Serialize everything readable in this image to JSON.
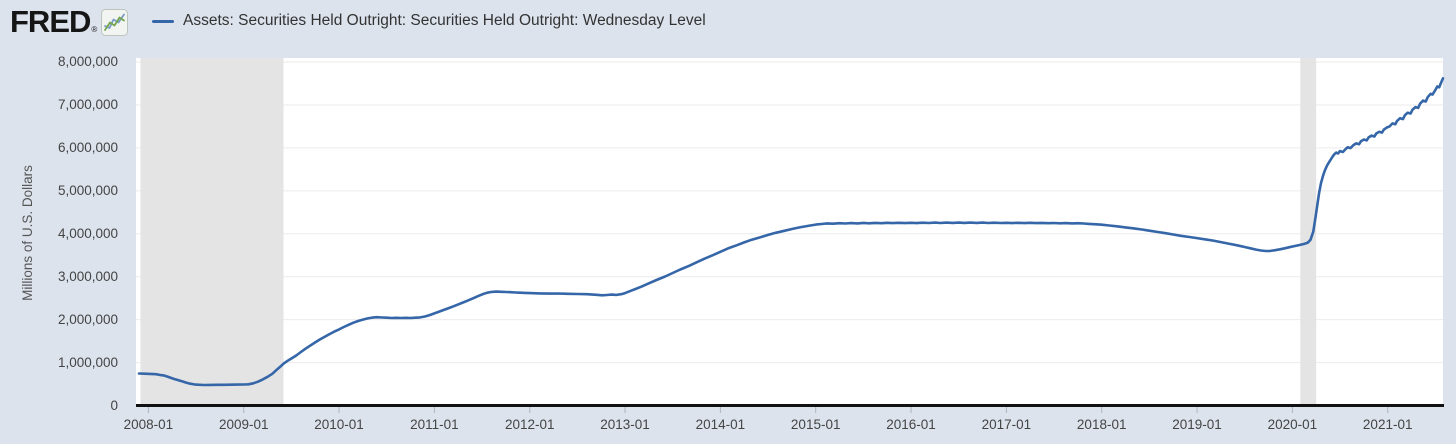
{
  "header": {
    "logo_text": "FRED",
    "registered_mark": "®",
    "legend": {
      "series_label": "Assets: Securities Held Outright: Securities Held Outright: Wednesday Level"
    }
  },
  "chart_data": {
    "type": "line",
    "title": "Assets: Securities Held Outright: Securities Held Outright: Wednesday Level",
    "xlabel": "",
    "ylabel": "Millions of U.S. Dollars",
    "x_domain": [
      2007.87,
      2021.58
    ],
    "ylim": [
      0,
      8000000
    ],
    "y_tick_step": 1000000,
    "grid": "horizontal",
    "legend_position": "top",
    "y_ticks": [
      "0",
      "1,000,000",
      "2,000,000",
      "3,000,000",
      "4,000,000",
      "5,000,000",
      "6,000,000",
      "7,000,000",
      "8,000,000"
    ],
    "x_ticks": [
      {
        "label": "2008-01",
        "x": 2008
      },
      {
        "label": "2009-01",
        "x": 2009
      },
      {
        "label": "2010-01",
        "x": 2010
      },
      {
        "label": "2011-01",
        "x": 2011
      },
      {
        "label": "2012-01",
        "x": 2012
      },
      {
        "label": "2013-01",
        "x": 2013
      },
      {
        "label": "2014-01",
        "x": 2014
      },
      {
        "label": "2015-01",
        "x": 2015
      },
      {
        "label": "2016-01",
        "x": 2016
      },
      {
        "label": "2017-01",
        "x": 2017
      },
      {
        "label": "2018-01",
        "x": 2018
      },
      {
        "label": "2019-01",
        "x": 2019
      },
      {
        "label": "2020-01",
        "x": 2020
      },
      {
        "label": "2021-01",
        "x": 2021
      }
    ],
    "recession_bands": [
      [
        2007.917,
        2009.417
      ],
      [
        2020.083,
        2020.25
      ]
    ],
    "colors": {
      "line": "#3566a8",
      "plot_bg": "#ffffff",
      "page_bg": "#dce3ed",
      "band": "#e4e4e4",
      "grid": "#ebebeb",
      "axis": "#111111",
      "tick": "#aab4c4"
    },
    "series": [
      {
        "name": "Assets: Securities Held Outright: Securities Held Outright: Wednesday Level",
        "points": [
          [
            2007.9,
            745000
          ],
          [
            2007.96,
            741000
          ],
          [
            2008.02,
            736000
          ],
          [
            2008.08,
            728000
          ],
          [
            2008.12,
            713000
          ],
          [
            2008.16,
            700000
          ],
          [
            2008.2,
            672000
          ],
          [
            2008.24,
            640000
          ],
          [
            2008.28,
            610000
          ],
          [
            2008.32,
            585000
          ],
          [
            2008.36,
            558000
          ],
          [
            2008.4,
            532000
          ],
          [
            2008.44,
            508000
          ],
          [
            2008.48,
            492000
          ],
          [
            2008.52,
            484000
          ],
          [
            2008.58,
            478000
          ],
          [
            2008.65,
            480000
          ],
          [
            2008.72,
            483000
          ],
          [
            2008.79,
            481000
          ],
          [
            2008.86,
            485000
          ],
          [
            2008.93,
            487000
          ],
          [
            2009.0,
            490000
          ],
          [
            2009.05,
            494000
          ],
          [
            2009.1,
            516000
          ],
          [
            2009.15,
            555000
          ],
          [
            2009.2,
            608000
          ],
          [
            2009.25,
            668000
          ],
          [
            2009.3,
            738000
          ],
          [
            2009.34,
            820000
          ],
          [
            2009.38,
            900000
          ],
          [
            2009.42,
            980000
          ],
          [
            2009.46,
            1040000
          ],
          [
            2009.5,
            1095000
          ],
          [
            2009.55,
            1165000
          ],
          [
            2009.6,
            1245000
          ],
          [
            2009.65,
            1325000
          ],
          [
            2009.7,
            1400000
          ],
          [
            2009.75,
            1470000
          ],
          [
            2009.8,
            1540000
          ],
          [
            2009.85,
            1602000
          ],
          [
            2009.9,
            1662000
          ],
          [
            2009.95,
            1720000
          ],
          [
            2010.0,
            1772000
          ],
          [
            2010.05,
            1828000
          ],
          [
            2010.1,
            1880000
          ],
          [
            2010.15,
            1928000
          ],
          [
            2010.2,
            1968000
          ],
          [
            2010.25,
            2000000
          ],
          [
            2010.3,
            2028000
          ],
          [
            2010.35,
            2046000
          ],
          [
            2010.4,
            2056000
          ],
          [
            2010.45,
            2050000
          ],
          [
            2010.5,
            2044000
          ],
          [
            2010.55,
            2038000
          ],
          [
            2010.6,
            2043000
          ],
          [
            2010.65,
            2037000
          ],
          [
            2010.7,
            2042000
          ],
          [
            2010.75,
            2038000
          ],
          [
            2010.8,
            2045000
          ],
          [
            2010.85,
            2052000
          ],
          [
            2010.9,
            2072000
          ],
          [
            2010.95,
            2105000
          ],
          [
            2011.0,
            2145000
          ],
          [
            2011.05,
            2186000
          ],
          [
            2011.1,
            2226000
          ],
          [
            2011.15,
            2268000
          ],
          [
            2011.2,
            2310000
          ],
          [
            2011.25,
            2354000
          ],
          [
            2011.3,
            2399000
          ],
          [
            2011.35,
            2444000
          ],
          [
            2011.4,
            2490000
          ],
          [
            2011.45,
            2540000
          ],
          [
            2011.5,
            2588000
          ],
          [
            2011.55,
            2624000
          ],
          [
            2011.6,
            2645000
          ],
          [
            2011.65,
            2652000
          ],
          [
            2011.7,
            2649000
          ],
          [
            2011.75,
            2644000
          ],
          [
            2011.8,
            2638000
          ],
          [
            2011.85,
            2632000
          ],
          [
            2011.9,
            2627000
          ],
          [
            2011.95,
            2622000
          ],
          [
            2012.0,
            2618000
          ],
          [
            2012.1,
            2611000
          ],
          [
            2012.2,
            2606000
          ],
          [
            2012.3,
            2608000
          ],
          [
            2012.4,
            2602000
          ],
          [
            2012.5,
            2597000
          ],
          [
            2012.6,
            2591000
          ],
          [
            2012.7,
            2579000
          ],
          [
            2012.76,
            2566000
          ],
          [
            2012.81,
            2574000
          ],
          [
            2012.86,
            2583000
          ],
          [
            2012.91,
            2576000
          ],
          [
            2012.96,
            2592000
          ],
          [
            2013.0,
            2618000
          ],
          [
            2013.08,
            2688000
          ],
          [
            2013.17,
            2766000
          ],
          [
            2013.25,
            2845000
          ],
          [
            2013.33,
            2924000
          ],
          [
            2013.42,
            3004000
          ],
          [
            2013.5,
            3086000
          ],
          [
            2013.58,
            3168000
          ],
          [
            2013.67,
            3251000
          ],
          [
            2013.75,
            3334000
          ],
          [
            2013.83,
            3417000
          ],
          [
            2013.92,
            3500000
          ],
          [
            2014.0,
            3580000
          ],
          [
            2014.08,
            3658000
          ],
          [
            2014.17,
            3731000
          ],
          [
            2014.25,
            3799000
          ],
          [
            2014.33,
            3862000
          ],
          [
            2014.42,
            3920000
          ],
          [
            2014.5,
            3973000
          ],
          [
            2014.58,
            4022000
          ],
          [
            2014.67,
            4068000
          ],
          [
            2014.75,
            4111000
          ],
          [
            2014.83,
            4149000
          ],
          [
            2014.92,
            4183000
          ],
          [
            2015.0,
            4213000
          ],
          [
            2015.06,
            4228000
          ],
          [
            2015.12,
            4240000
          ],
          [
            2015.18,
            4233000
          ],
          [
            2015.25,
            4246000
          ],
          [
            2015.31,
            4238000
          ],
          [
            2015.37,
            4249000
          ],
          [
            2015.44,
            4242000
          ],
          [
            2015.5,
            4252000
          ],
          [
            2015.56,
            4244000
          ],
          [
            2015.62,
            4253000
          ],
          [
            2015.69,
            4246000
          ],
          [
            2015.75,
            4255000
          ],
          [
            2015.81,
            4247000
          ],
          [
            2015.87,
            4256000
          ],
          [
            2015.94,
            4248000
          ],
          [
            2016.0,
            4256000
          ],
          [
            2016.06,
            4249000
          ],
          [
            2016.12,
            4258000
          ],
          [
            2016.19,
            4250000
          ],
          [
            2016.25,
            4259000
          ],
          [
            2016.31,
            4251000
          ],
          [
            2016.37,
            4259000
          ],
          [
            2016.44,
            4252000
          ],
          [
            2016.5,
            4260000
          ],
          [
            2016.56,
            4252000
          ],
          [
            2016.62,
            4260000
          ],
          [
            2016.69,
            4252000
          ],
          [
            2016.75,
            4259000
          ],
          [
            2016.81,
            4251000
          ],
          [
            2016.87,
            4258000
          ],
          [
            2016.94,
            4250000
          ],
          [
            2017.0,
            4256000
          ],
          [
            2017.06,
            4248000
          ],
          [
            2017.12,
            4256000
          ],
          [
            2017.19,
            4248000
          ],
          [
            2017.25,
            4255000
          ],
          [
            2017.31,
            4247000
          ],
          [
            2017.37,
            4253000
          ],
          [
            2017.44,
            4246000
          ],
          [
            2017.5,
            4251000
          ],
          [
            2017.56,
            4244000
          ],
          [
            2017.62,
            4249000
          ],
          [
            2017.69,
            4242000
          ],
          [
            2017.75,
            4246000
          ],
          [
            2017.81,
            4238000
          ],
          [
            2017.87,
            4230000
          ],
          [
            2017.94,
            4220000
          ],
          [
            2018.0,
            4210000
          ],
          [
            2018.08,
            4191000
          ],
          [
            2018.17,
            4171000
          ],
          [
            2018.25,
            4149000
          ],
          [
            2018.33,
            4126000
          ],
          [
            2018.42,
            4100000
          ],
          [
            2018.5,
            4072000
          ],
          [
            2018.58,
            4042000
          ],
          [
            2018.67,
            4012000
          ],
          [
            2018.75,
            3982000
          ],
          [
            2018.83,
            3952000
          ],
          [
            2018.92,
            3925000
          ],
          [
            2019.0,
            3899000
          ],
          [
            2019.08,
            3871000
          ],
          [
            2019.17,
            3840000
          ],
          [
            2019.25,
            3806000
          ],
          [
            2019.33,
            3770000
          ],
          [
            2019.42,
            3731000
          ],
          [
            2019.5,
            3692000
          ],
          [
            2019.56,
            3661000
          ],
          [
            2019.62,
            3631000
          ],
          [
            2019.67,
            3610000
          ],
          [
            2019.72,
            3598000
          ],
          [
            2019.77,
            3601000
          ],
          [
            2019.82,
            3616000
          ],
          [
            2019.87,
            3638000
          ],
          [
            2019.92,
            3662000
          ],
          [
            2019.97,
            3687000
          ],
          [
            2020.02,
            3712000
          ],
          [
            2020.07,
            3736000
          ],
          [
            2020.12,
            3762000
          ],
          [
            2020.16,
            3790000
          ],
          [
            2020.19,
            3860000
          ],
          [
            2020.22,
            4050000
          ],
          [
            2020.24,
            4350000
          ],
          [
            2020.26,
            4650000
          ],
          [
            2020.28,
            4950000
          ],
          [
            2020.3,
            5180000
          ],
          [
            2020.32,
            5340000
          ],
          [
            2020.34,
            5470000
          ],
          [
            2020.36,
            5570000
          ],
          [
            2020.38,
            5650000
          ],
          [
            2020.4,
            5720000
          ],
          [
            2020.42,
            5790000
          ],
          [
            2020.44,
            5850000
          ],
          [
            2020.46,
            5890000
          ],
          [
            2020.48,
            5870000
          ],
          [
            2020.5,
            5925000
          ],
          [
            2020.53,
            5905000
          ],
          [
            2020.56,
            5975000
          ],
          [
            2020.58,
            6015000
          ],
          [
            2020.61,
            5995000
          ],
          [
            2020.64,
            6065000
          ],
          [
            2020.67,
            6105000
          ],
          [
            2020.7,
            6085000
          ],
          [
            2020.72,
            6155000
          ],
          [
            2020.75,
            6195000
          ],
          [
            2020.78,
            6175000
          ],
          [
            2020.8,
            6245000
          ],
          [
            2020.83,
            6285000
          ],
          [
            2020.86,
            6265000
          ],
          [
            2020.88,
            6335000
          ],
          [
            2020.91,
            6375000
          ],
          [
            2020.94,
            6355000
          ],
          [
            2020.96,
            6425000
          ],
          [
            2020.99,
            6475000
          ],
          [
            2021.02,
            6500000
          ],
          [
            2021.05,
            6570000
          ],
          [
            2021.08,
            6550000
          ],
          [
            2021.1,
            6630000
          ],
          [
            2021.13,
            6690000
          ],
          [
            2021.16,
            6670000
          ],
          [
            2021.18,
            6760000
          ],
          [
            2021.21,
            6820000
          ],
          [
            2021.24,
            6800000
          ],
          [
            2021.26,
            6890000
          ],
          [
            2021.29,
            6950000
          ],
          [
            2021.32,
            6930000
          ],
          [
            2021.34,
            7030000
          ],
          [
            2021.37,
            7100000
          ],
          [
            2021.4,
            7080000
          ],
          [
            2021.42,
            7180000
          ],
          [
            2021.45,
            7260000
          ],
          [
            2021.47,
            7240000
          ],
          [
            2021.5,
            7350000
          ],
          [
            2021.52,
            7430000
          ],
          [
            2021.54,
            7410000
          ],
          [
            2021.56,
            7520000
          ],
          [
            2021.58,
            7620000
          ]
        ]
      }
    ]
  }
}
